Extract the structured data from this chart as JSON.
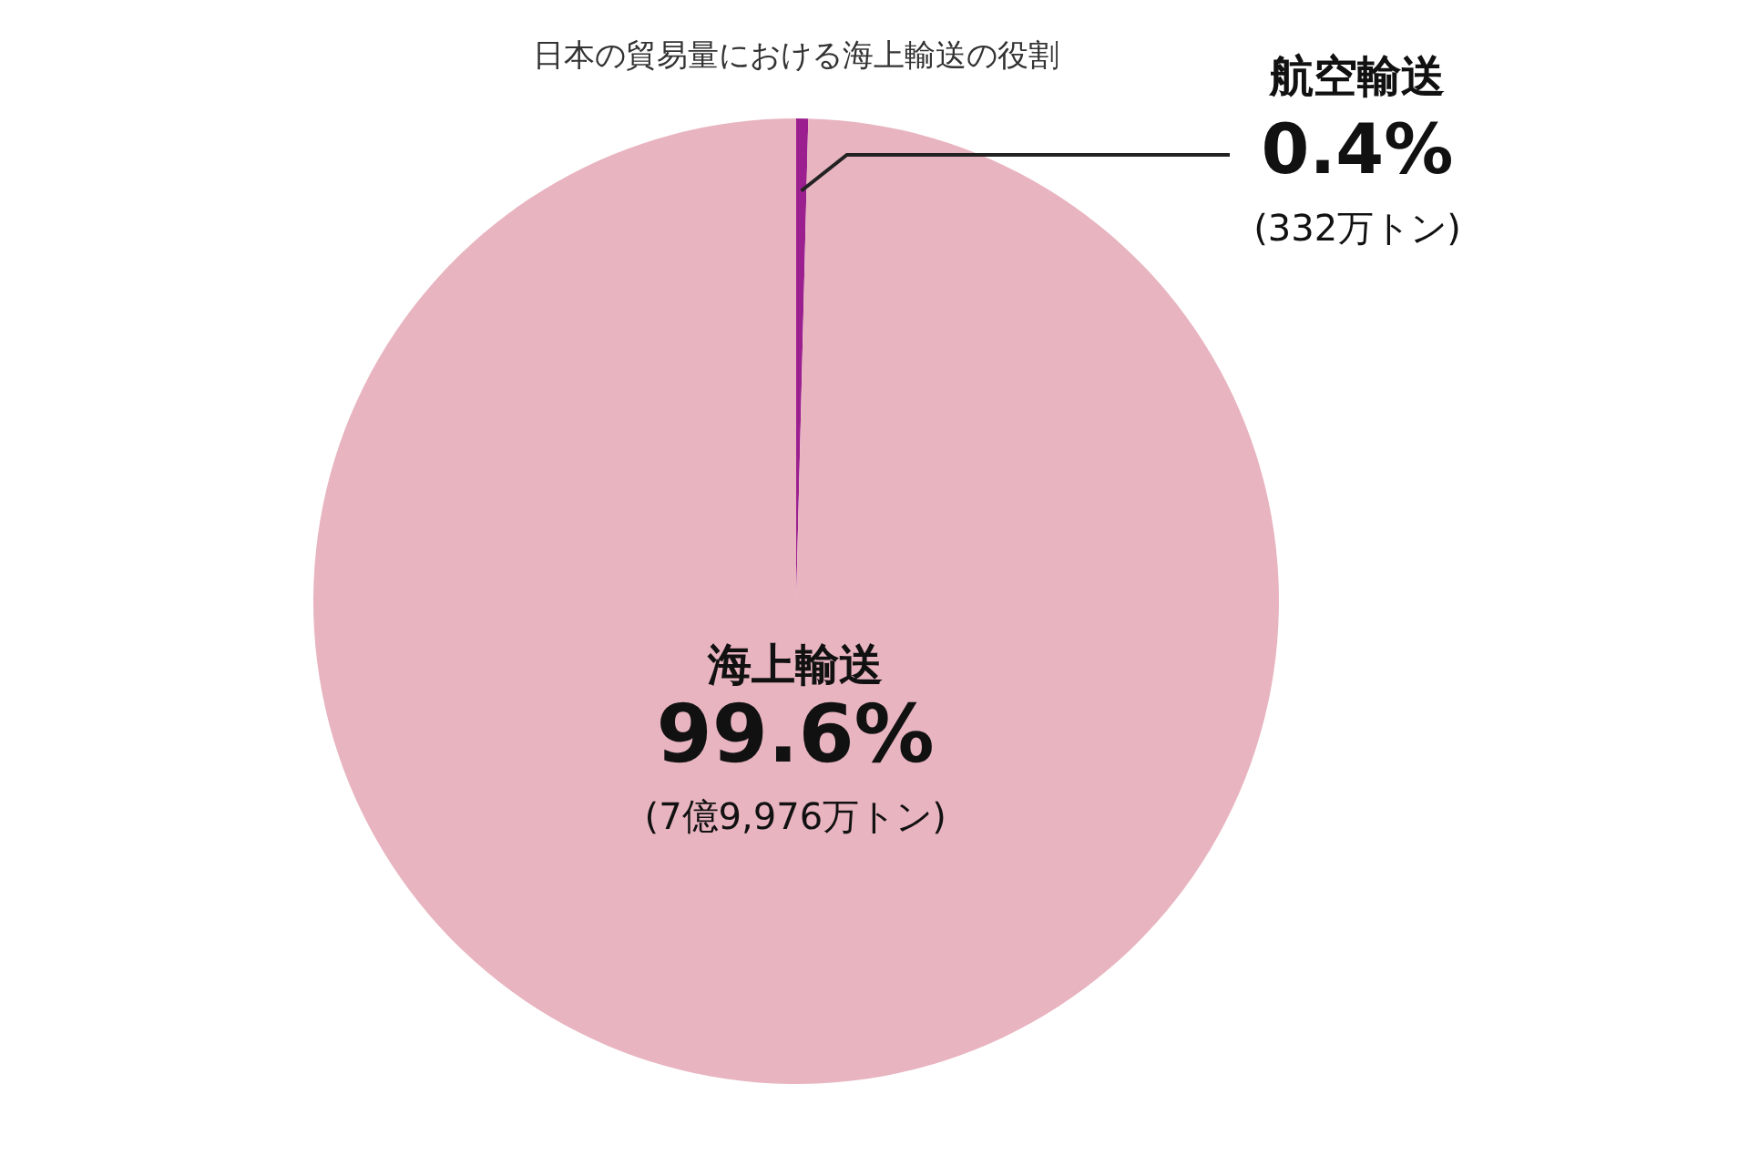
{
  "chart_data": {
    "type": "pie",
    "title": "日本の貿易量における海上輸送の役割",
    "categories": [
      "航空輸送",
      "海上輸送"
    ],
    "values": [
      0.4,
      99.6
    ],
    "colors": [
      "#9b1f8e",
      "#e8b4c0"
    ],
    "value_labels": [
      "0.4%",
      "99.6%"
    ],
    "annotations": [
      "(332万トン)",
      "(7億9,976万トン)"
    ],
    "legend": false
  }
}
